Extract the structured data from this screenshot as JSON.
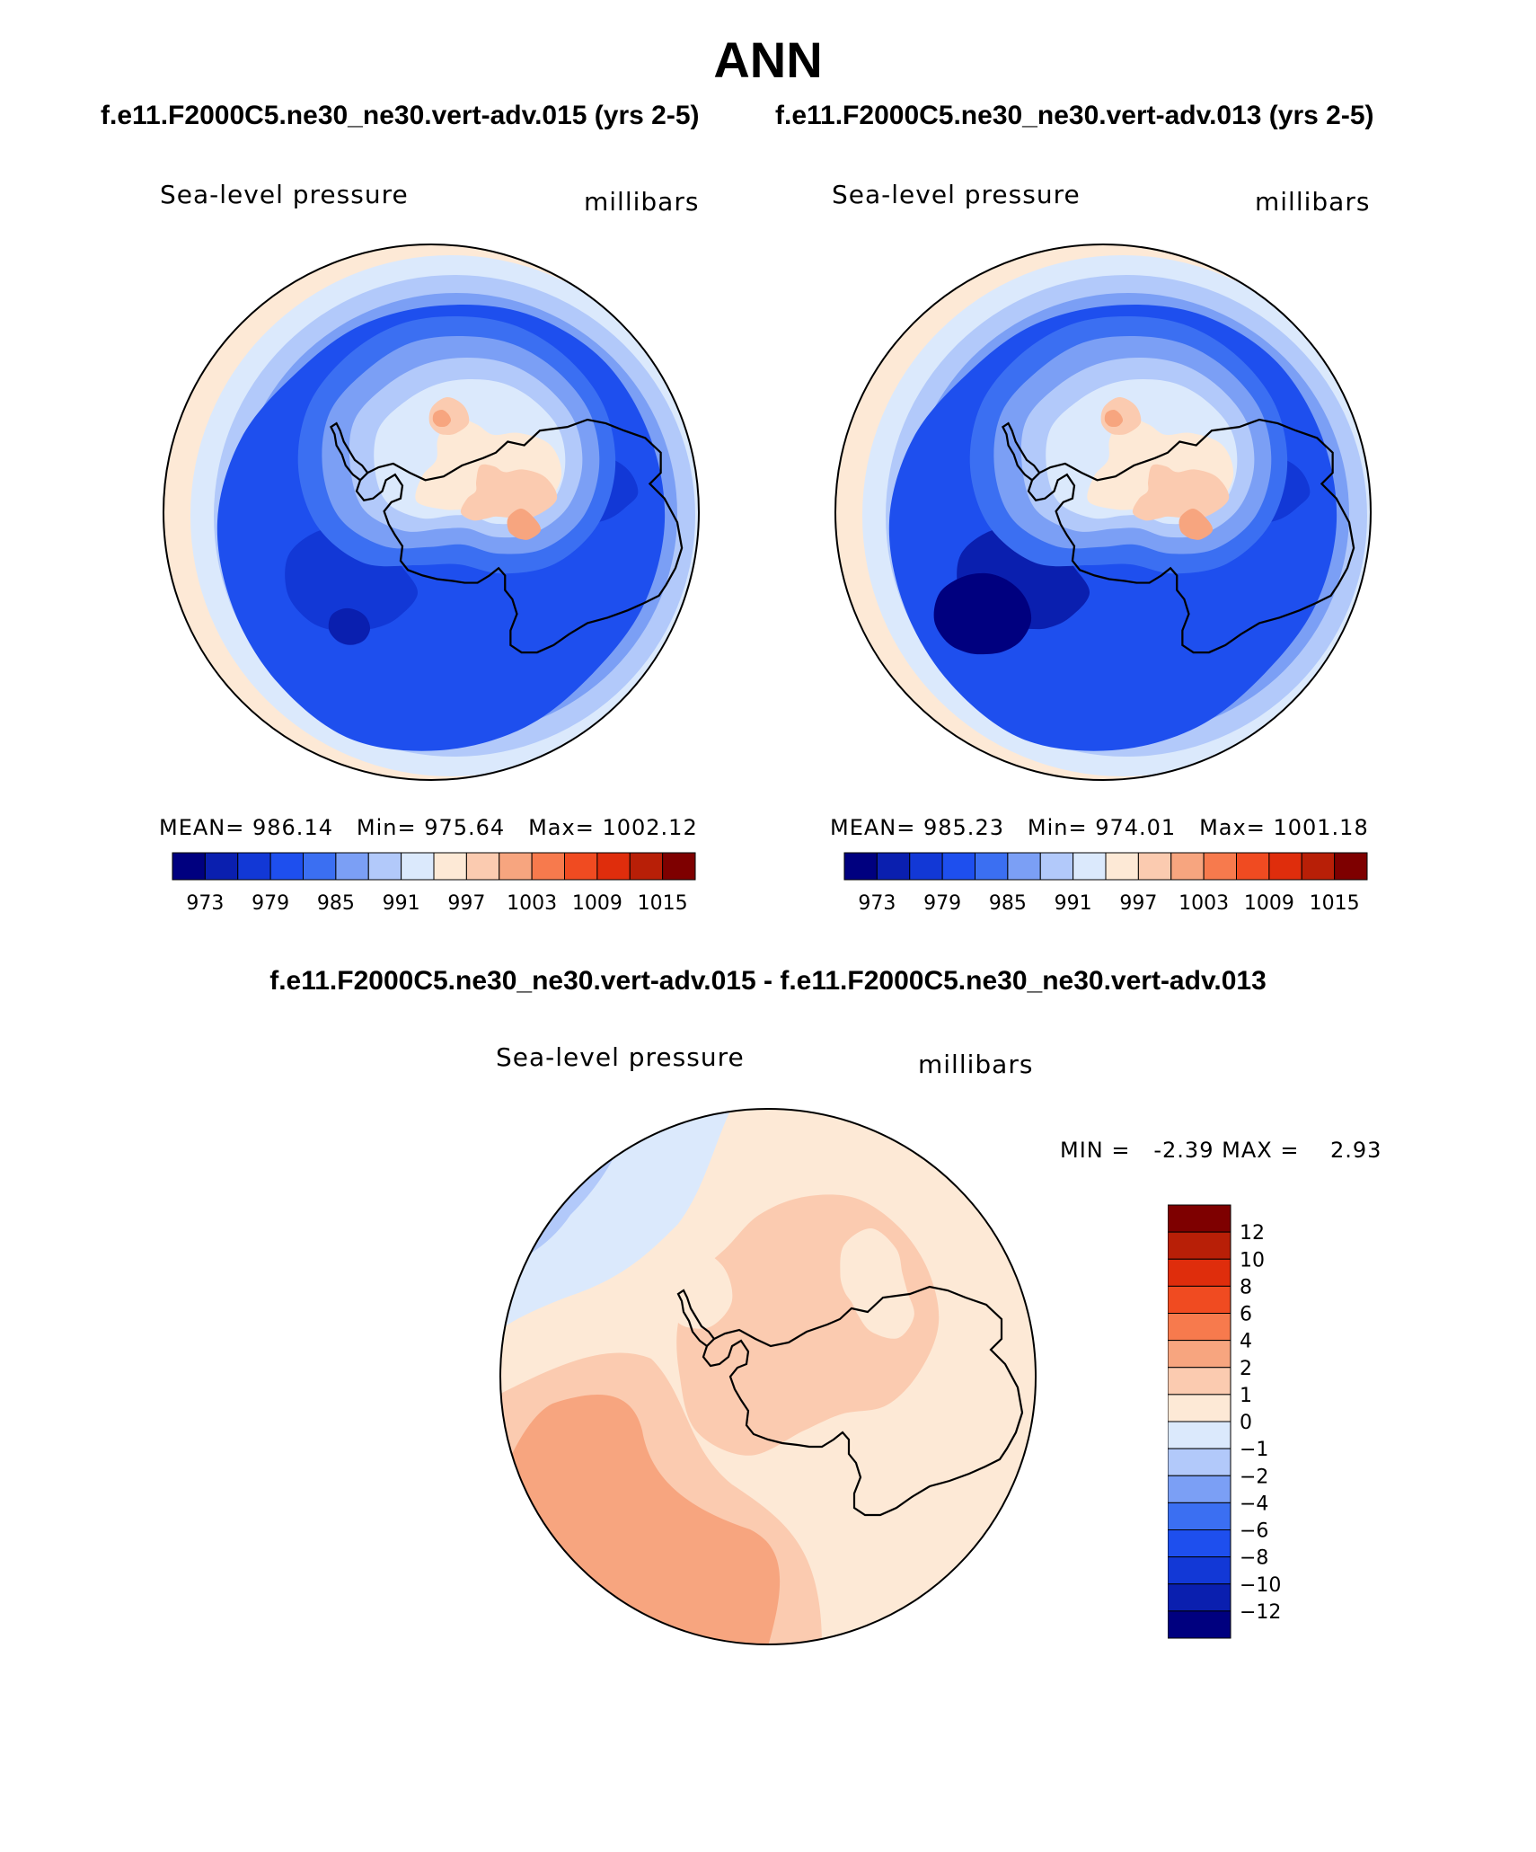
{
  "title": "ANN",
  "case_titles": [
    "f.e11.F2000C5.ne30_ne30.vert-adv.015 (yrs 2-5)",
    "f.e11.F2000C5.ne30_ne30.vert-adv.013 (yrs 2-5)"
  ],
  "diff_title": "f.e11.F2000C5.ne30_ne30.vert-adv.015 - f.e11.F2000C5.ne30_ne30.vert-adv.013",
  "chart_data": [
    {
      "type": "heatmap",
      "title": "Sea-level pressure",
      "units": "millibars",
      "projection": "south-polar-stereographic",
      "stats": {
        "mean_label": "MEAN=",
        "mean": "986.14",
        "min_label": "Min=",
        "min": "975.64",
        "max_label": "Max=",
        "max": "1002.12"
      },
      "contour_levels": [
        973,
        976,
        979,
        982,
        985,
        988,
        991,
        994,
        997,
        1000,
        1003,
        1006,
        1009,
        1012,
        1015
      ],
      "colorbar_tick_labels": [
        "973",
        "979",
        "985",
        "991",
        "997",
        "1003",
        "1009",
        "1015"
      ],
      "legend_position": "bottom"
    },
    {
      "type": "heatmap",
      "title": "Sea-level pressure",
      "units": "millibars",
      "projection": "south-polar-stereographic",
      "stats": {
        "mean_label": "MEAN=",
        "mean": "985.23",
        "min_label": "Min=",
        "min": "974.01",
        "max_label": "Max=",
        "max": "1001.18"
      },
      "contour_levels": [
        973,
        976,
        979,
        982,
        985,
        988,
        991,
        994,
        997,
        1000,
        1003,
        1006,
        1009,
        1012,
        1015
      ],
      "colorbar_tick_labels": [
        "973",
        "979",
        "985",
        "991",
        "997",
        "1003",
        "1009",
        "1015"
      ],
      "legend_position": "bottom"
    },
    {
      "type": "heatmap",
      "title": "Sea-level pressure",
      "units": "millibars",
      "projection": "south-polar-stereographic",
      "stats": {
        "min_label": "MIN =",
        "min": "-2.39",
        "max_label": "MAX =",
        "max": "2.93"
      },
      "contour_levels": [
        -12,
        -10,
        -8,
        -6,
        -4,
        -2,
        -1,
        0,
        1,
        2,
        4,
        6,
        8,
        10,
        12
      ],
      "colorbar_tick_labels": [
        "12",
        "10",
        "8",
        "6",
        "4",
        "2",
        "1",
        "0",
        "−1",
        "−2",
        "−4",
        "−6",
        "−8",
        "−10",
        "−12"
      ],
      "legend_position": "right"
    }
  ],
  "colors": {
    "palette_blue_to_red": [
      "#00007f",
      "#0a1faf",
      "#1238d6",
      "#1e4fee",
      "#3b6ff2",
      "#7b9ff5",
      "#b2c9fa",
      "#dbe9fc",
      "#fde9d6",
      "#fbcbb0",
      "#f7a57f",
      "#f77a4d",
      "#f04b21",
      "#df2d0c",
      "#b81f07",
      "#7e0000"
    ],
    "land_outline": "#000000"
  }
}
